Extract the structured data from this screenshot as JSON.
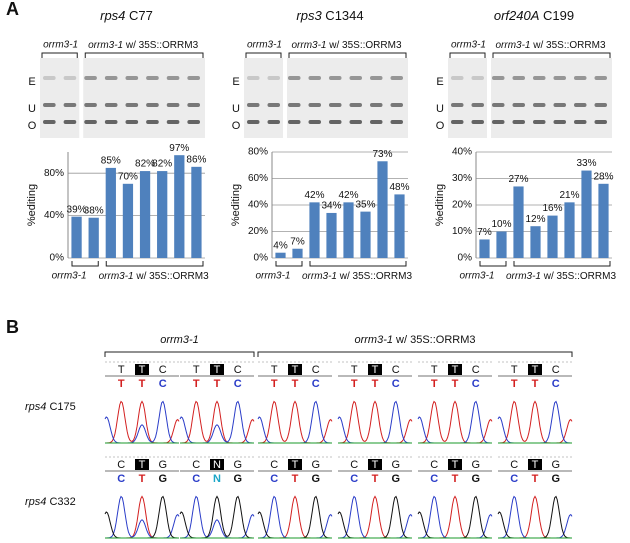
{
  "panel_a_label": "A",
  "panel_b_label": "B",
  "chart_data": [
    {
      "type": "bar",
      "title": "rps4 C77",
      "gel_lanes": [
        "E",
        "U",
        "O"
      ],
      "group_labels": [
        "orrm3-1",
        "orrm3-1 w/ 35S::ORRM3"
      ],
      "categories": [
        null,
        null,
        null,
        null,
        null,
        null,
        null,
        null
      ],
      "values": [
        39,
        38,
        85,
        70,
        82,
        82,
        97,
        86
      ],
      "value_labels": [
        "39%",
        "38%",
        "85%",
        "70%",
        "82%",
        "82%",
        "97%",
        "86%"
      ],
      "ylabel": "%editing",
      "ylim": [
        0,
        100
      ],
      "yticks": [
        {
          "value": 0,
          "label": "0%"
        },
        {
          "value": 40,
          "label": "40%"
        },
        {
          "value": 80,
          "label": "80%"
        }
      ],
      "color": "#4f81bd",
      "grid": true
    },
    {
      "type": "bar",
      "title": "rps3 C1344",
      "gel_lanes": [
        "E",
        "U",
        "O"
      ],
      "group_labels": [
        "orrm3-1",
        "orrm3-1 w/ 35S::ORRM3"
      ],
      "categories": [
        null,
        null,
        null,
        null,
        null,
        null,
        null,
        null
      ],
      "values": [
        4,
        7,
        42,
        34,
        42,
        35,
        73,
        48
      ],
      "value_labels": [
        "4%",
        "7%",
        "42%",
        "34%",
        "42%",
        "35%",
        "73%",
        "48%"
      ],
      "ylabel": "%editing",
      "ylim": [
        0,
        80
      ],
      "yticks": [
        {
          "value": 0,
          "label": "0%"
        },
        {
          "value": 20,
          "label": "20%"
        },
        {
          "value": 40,
          "label": "40%"
        },
        {
          "value": 60,
          "label": "60%"
        },
        {
          "value": 80,
          "label": "80%"
        }
      ],
      "color": "#4f81bd",
      "grid": true
    },
    {
      "type": "bar",
      "title": "orf240A C199",
      "gel_lanes": [
        "E",
        "U",
        "O"
      ],
      "group_labels": [
        "orrm3-1",
        "orrm3-1 w/ 35S::ORRM3"
      ],
      "categories": [
        null,
        null,
        null,
        null,
        null,
        null,
        null,
        null
      ],
      "values": [
        7,
        10,
        27,
        12,
        16,
        21,
        33,
        28
      ],
      "value_labels": [
        "7%",
        "10%",
        "27%",
        "12%",
        "16%",
        "21%",
        "33%",
        "28%"
      ],
      "ylabel": "%editing",
      "ylim": [
        0,
        40
      ],
      "yticks": [
        {
          "value": 0,
          "label": "0%"
        },
        {
          "value": 10,
          "label": "10%"
        },
        {
          "value": 20,
          "label": "20%"
        },
        {
          "value": 30,
          "label": "30%"
        },
        {
          "value": 40,
          "label": "40%"
        }
      ],
      "color": "#4f81bd",
      "grid": true
    }
  ],
  "panel_b": {
    "group_labels": [
      "orrm3-1",
      "orrm3-1 w/ 35S::ORRM3"
    ],
    "rows": [
      {
        "label": "rps4 C175",
        "traces": [
          [
            "T",
            "T",
            "C"
          ],
          [
            "T",
            "T",
            "C"
          ],
          [
            "T",
            "T",
            "C"
          ],
          [
            "T",
            "T",
            "C"
          ],
          [
            "T",
            "T",
            "C"
          ],
          [
            "T",
            "T",
            "C"
          ]
        ]
      },
      {
        "label": "rps4 C332",
        "traces": [
          [
            "C",
            "T",
            "G"
          ],
          [
            "C",
            "N",
            "G"
          ],
          [
            "C",
            "T",
            "G"
          ],
          [
            "C",
            "T",
            "G"
          ],
          [
            "C",
            "T",
            "G"
          ],
          [
            "C",
            "T",
            "G"
          ]
        ]
      }
    ]
  }
}
